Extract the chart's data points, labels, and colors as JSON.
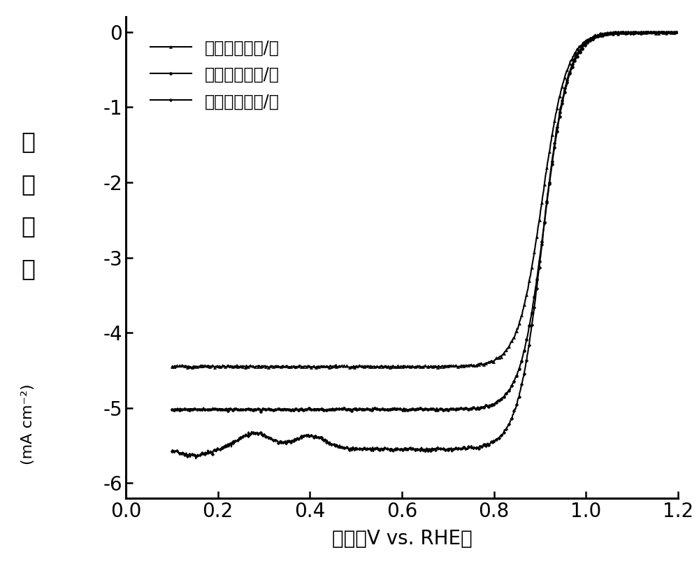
{
  "xlim": [
    0.0,
    1.2
  ],
  "ylim": [
    -6.2,
    0.2
  ],
  "xticks": [
    0.0,
    0.2,
    0.4,
    0.6,
    0.8,
    1.0,
    1.2
  ],
  "yticks": [
    0,
    -1,
    -2,
    -3,
    -4,
    -5,
    -6
  ],
  "xtick_labels": [
    "0.0",
    "0.2",
    "0.4",
    "0.6",
    "0.8",
    "1.0",
    "1.2"
  ],
  "ytick_labels": [
    "0",
    "-1",
    "-2",
    "-3",
    "-4",
    "-5",
    "-6"
  ],
  "legend": [
    "石墨相氮化碳/铂",
    "质子化氮化碳/铂",
    "硫掺杂氮化碳/铂"
  ],
  "ylabel_chars": [
    "电",
    "流",
    "密",
    "度"
  ],
  "ylabel_unit": "(mA cm⁻²)",
  "xlabel": "电压（V vs. RHE）",
  "line_color": "#000000",
  "background_color": "#ffffff",
  "curve1_limit": -4.45,
  "curve1_half": 0.905,
  "curve2_limit": -5.02,
  "curve2_half": 0.91,
  "curve3_limit": -5.55,
  "curve3_half": 0.905,
  "slope": 38,
  "marker_size": 3,
  "marker_every": 4,
  "linewidth": 1.5,
  "legend_fontsize": 17,
  "tick_fontsize": 20,
  "xlabel_fontsize": 20,
  "ylabel_fontsize": 24
}
